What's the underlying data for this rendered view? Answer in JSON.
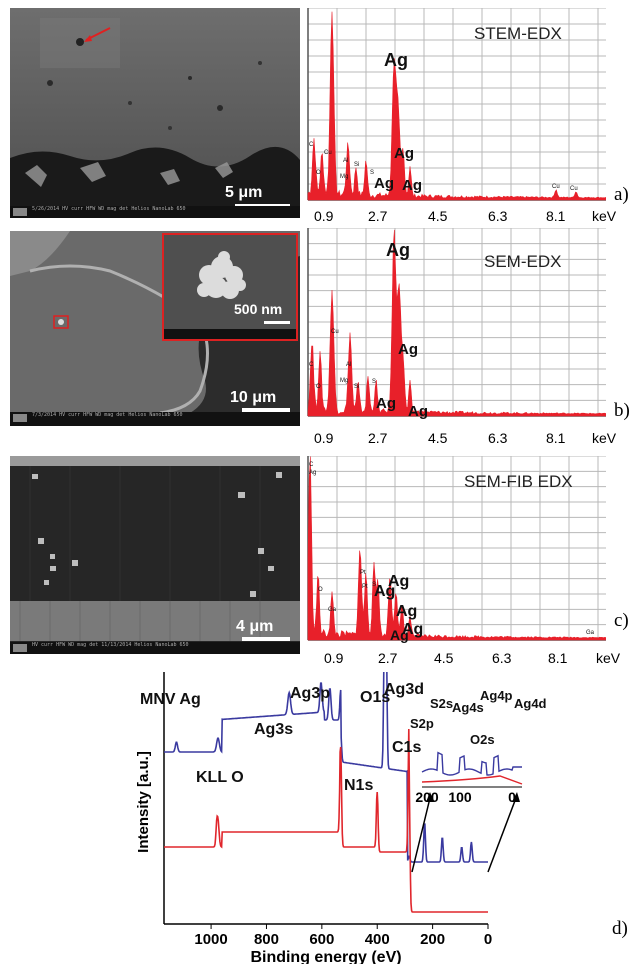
{
  "panels": [
    {
      "label": "a)",
      "scale": "5 μm",
      "sem_bar": "5/26/2014  HV  curr  HFW  WD  mag  det   Helios NanoLab 650",
      "spectrum": {
        "title": "STEM-EDX",
        "ticks": [
          "0.9",
          "2.7",
          "4.5",
          "6.3",
          "8.1"
        ],
        "unit": "keV",
        "ag_labels": [
          "Ag",
          "Ag",
          "Ag",
          "Ag"
        ],
        "small_labels": [
          "C",
          "O",
          "Cu",
          "Al",
          "Mg",
          "Si",
          "S",
          "Cu",
          "Cu"
        ]
      }
    },
    {
      "label": "b)",
      "scale": "10 μm",
      "inset_scale": "500 nm",
      "sem_bar": "7/3/2014  HV  curr  HFW  WD  mag  det   Helios NanoLab 650",
      "spectrum": {
        "title": "SEM-EDX",
        "ticks": [
          "0.9",
          "2.7",
          "4.5",
          "6.3",
          "8.1"
        ],
        "unit": "keV",
        "ag_labels": [
          "Ag",
          "Ag",
          "Ag",
          "Ag"
        ],
        "small_labels": [
          "C",
          "O",
          "Cu",
          "Al",
          "Mg",
          "Si",
          "S"
        ]
      }
    },
    {
      "label": "c)",
      "scale": "4 μm",
      "sem_bar": "HV  curr  HFW  WD  mag  det  11/13/2014   Helios NanoLab 650",
      "spectrum": {
        "title": "SEM-FIB EDX",
        "ticks": [
          "0.9",
          "2.7",
          "4.5",
          "6.3",
          "8.1"
        ],
        "unit": "keV",
        "ag_labels": [
          "Ag",
          "Ag",
          "Ag",
          "Ag",
          "Ag"
        ],
        "small_labels": [
          "C",
          "Ag",
          "O",
          "Ga",
          "Pt",
          "Pt",
          "S",
          "Ga"
        ]
      }
    }
  ],
  "xps": {
    "label": "d)",
    "xlabel": "Binding energy (eV)",
    "ylabel": "Intensity [a.u.]",
    "xticks": [
      "1000",
      "800",
      "600",
      "400",
      "200",
      "0"
    ],
    "inset_ticks": [
      "200",
      "100",
      "0"
    ],
    "labels": {
      "mnv_ag": "MNV Ag",
      "ag3s": "Ag3s",
      "ag3p": "Ag3p",
      "o1s": "O1s",
      "ag3d": "Ag3d",
      "c1s": "C1s",
      "n1s": "N1s",
      "kll_o": "KLL O",
      "s2p": "S2p",
      "s2s": "S2s",
      "ag4s": "Ag4s",
      "ag4p": "Ag4p",
      "ag4d": "Ag4d",
      "o2s": "O2s"
    },
    "colors": {
      "blue": "#3a3aa0",
      "red": "#e0262c"
    }
  },
  "colors": {
    "spectrum_red": "#e8202a",
    "grid": "#b8b8b8"
  }
}
